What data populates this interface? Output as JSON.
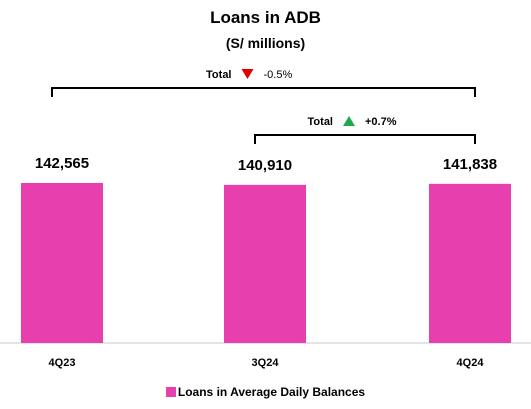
{
  "chart_data": {
    "type": "bar",
    "title": "Loans in ADB",
    "subtitle": "(S/ millions)",
    "categories": [
      "4Q23",
      "3Q24",
      "4Q24"
    ],
    "series": [
      {
        "name": "Loans in Average Daily Balances",
        "values": [
          142565,
          140910,
          141838
        ],
        "color": "#e83fae"
      }
    ],
    "data_labels": [
      "142,565",
      "140,910",
      "141,838"
    ],
    "legend_position": "bottom",
    "grid": false,
    "annotations": [
      {
        "from": "4Q23",
        "to": "4Q24",
        "label": "Total",
        "change": "-0.5%",
        "direction": "down",
        "arrow_color": "#e00000"
      },
      {
        "from": "3Q24",
        "to": "4Q24",
        "label": "Total",
        "change": "+0.7%",
        "direction": "up",
        "arrow_color": "#1fa94d"
      }
    ]
  }
}
